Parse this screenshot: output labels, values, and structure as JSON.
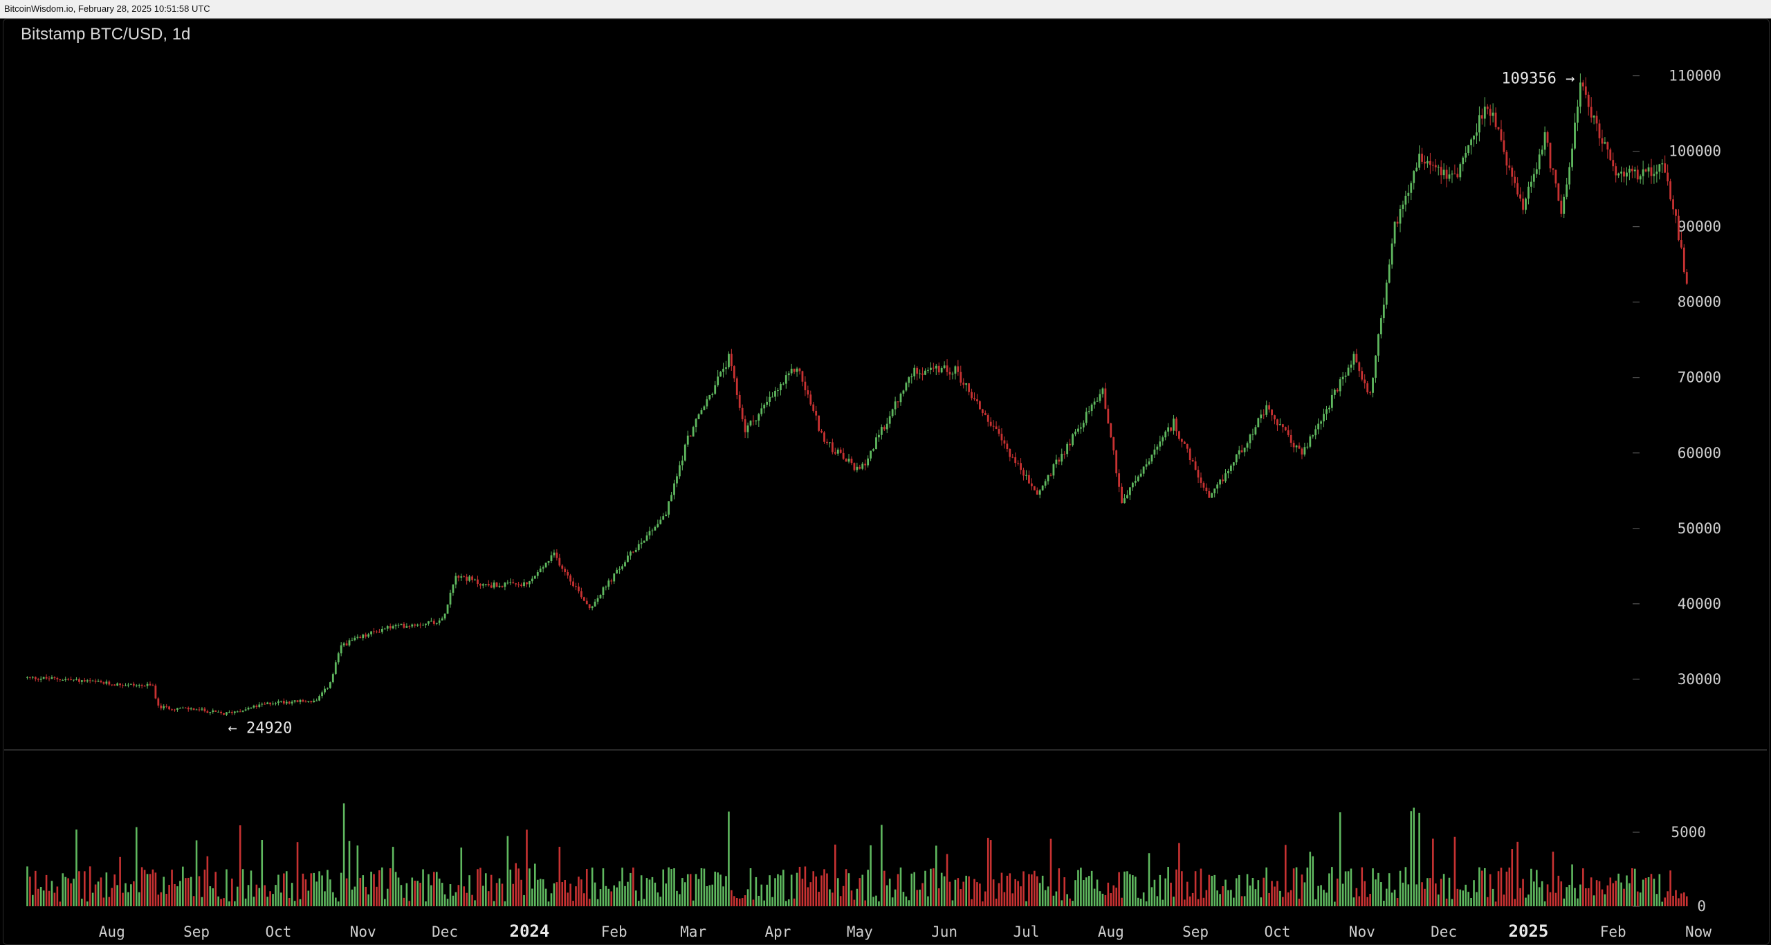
{
  "page": {
    "header_text": "BitcoinWisdom.io, February 28, 2025 10:51:58 UTC",
    "chart_title": "Bitstamp BTC/USD, 1d"
  },
  "colors": {
    "up": "#5fb85f",
    "down": "#c83232",
    "background": "#000000",
    "text": "#cfcfcf",
    "separator": "#555555"
  },
  "chart_data": {
    "type": "candlestick",
    "title": "Bitstamp BTC/USD, 1d",
    "price_axis": {
      "ticks": [
        30000,
        40000,
        50000,
        60000,
        70000,
        80000,
        90000,
        100000,
        110000
      ],
      "range": [
        21000,
        114000
      ]
    },
    "volume_axis": {
      "ticks": [
        0,
        5000
      ],
      "range": [
        0,
        10000
      ]
    },
    "x_labels": [
      {
        "label": "Aug",
        "date": "2023-08-01",
        "bold": false
      },
      {
        "label": "Sep",
        "date": "2023-09-01",
        "bold": false
      },
      {
        "label": "Oct",
        "date": "2023-10-01",
        "bold": false
      },
      {
        "label": "Nov",
        "date": "2023-11-01",
        "bold": false
      },
      {
        "label": "Dec",
        "date": "2023-12-01",
        "bold": false
      },
      {
        "label": "2024",
        "date": "2024-01-01",
        "bold": true
      },
      {
        "label": "Feb",
        "date": "2024-02-01",
        "bold": false
      },
      {
        "label": "Mar",
        "date": "2024-03-01",
        "bold": false
      },
      {
        "label": "Apr",
        "date": "2024-04-01",
        "bold": false
      },
      {
        "label": "May",
        "date": "2024-05-01",
        "bold": false
      },
      {
        "label": "Jun",
        "date": "2024-06-01",
        "bold": false
      },
      {
        "label": "Jul",
        "date": "2024-07-01",
        "bold": false
      },
      {
        "label": "Aug",
        "date": "2024-08-01",
        "bold": false
      },
      {
        "label": "Sep",
        "date": "2024-09-01",
        "bold": false
      },
      {
        "label": "Oct",
        "date": "2024-10-01",
        "bold": false
      },
      {
        "label": "Nov",
        "date": "2024-11-01",
        "bold": false
      },
      {
        "label": "Dec",
        "date": "2024-12-01",
        "bold": false
      },
      {
        "label": "2025",
        "date": "2025-01-01",
        "bold": true
      },
      {
        "label": "Feb",
        "date": "2025-02-01",
        "bold": false
      },
      {
        "label": "Now",
        "date": "2025-03-05",
        "bold": false
      }
    ],
    "start_date": "2023-07-01",
    "end_date": "2025-02-28",
    "price_path": [
      [
        "2023-07-01",
        30200
      ],
      [
        "2023-07-15",
        30000
      ],
      [
        "2023-07-31",
        29400
      ],
      [
        "2023-08-16",
        29100
      ],
      [
        "2023-08-18",
        26300
      ],
      [
        "2023-09-01",
        26000
      ],
      [
        "2023-09-11",
        25400
      ],
      [
        "2023-09-30",
        27000
      ],
      [
        "2023-10-15",
        27100
      ],
      [
        "2023-10-20",
        29500
      ],
      [
        "2023-10-24",
        34500
      ],
      [
        "2023-11-09",
        36800
      ],
      [
        "2023-11-30",
        37800
      ],
      [
        "2023-12-05",
        44000
      ],
      [
        "2023-12-15",
        42500
      ],
      [
        "2023-12-31",
        42500
      ],
      [
        "2024-01-10",
        46500
      ],
      [
        "2024-01-23",
        39500
      ],
      [
        "2024-02-09",
        47500
      ],
      [
        "2024-02-20",
        52000
      ],
      [
        "2024-02-28",
        62000
      ],
      [
        "2024-03-14",
        72500
      ],
      [
        "2024-03-20",
        63000
      ],
      [
        "2024-04-08",
        71500
      ],
      [
        "2024-04-18",
        61500
      ],
      [
        "2024-05-01",
        57500
      ],
      [
        "2024-05-21",
        71000
      ],
      [
        "2024-06-05",
        71000
      ],
      [
        "2024-06-24",
        60500
      ],
      [
        "2024-07-05",
        54500
      ],
      [
        "2024-07-29",
        68500
      ],
      [
        "2024-08-05",
        53500
      ],
      [
        "2024-08-24",
        64000
      ],
      [
        "2024-09-06",
        53700
      ],
      [
        "2024-09-27",
        65800
      ],
      [
        "2024-10-10",
        59800
      ],
      [
        "2024-10-29",
        72500
      ],
      [
        "2024-11-04",
        67800
      ],
      [
        "2024-11-13",
        90000
      ],
      [
        "2024-11-22",
        99500
      ],
      [
        "2024-12-05",
        96500
      ],
      [
        "2024-12-17",
        106500
      ],
      [
        "2024-12-30",
        92000
      ],
      [
        "2025-01-07",
        102000
      ],
      [
        "2025-01-13",
        91500
      ],
      [
        "2025-01-20",
        108500
      ],
      [
        "2025-02-03",
        96500
      ],
      [
        "2025-02-20",
        98000
      ],
      [
        "2025-02-25",
        89000
      ],
      [
        "2025-02-28",
        82000
      ]
    ],
    "annotations": [
      {
        "text": "109356 →",
        "value": 109356,
        "date": "2025-01-20",
        "type": "high"
      },
      {
        "text": "← 24920",
        "value": 24920,
        "date": "2023-09-11",
        "type": "low"
      }
    ]
  }
}
